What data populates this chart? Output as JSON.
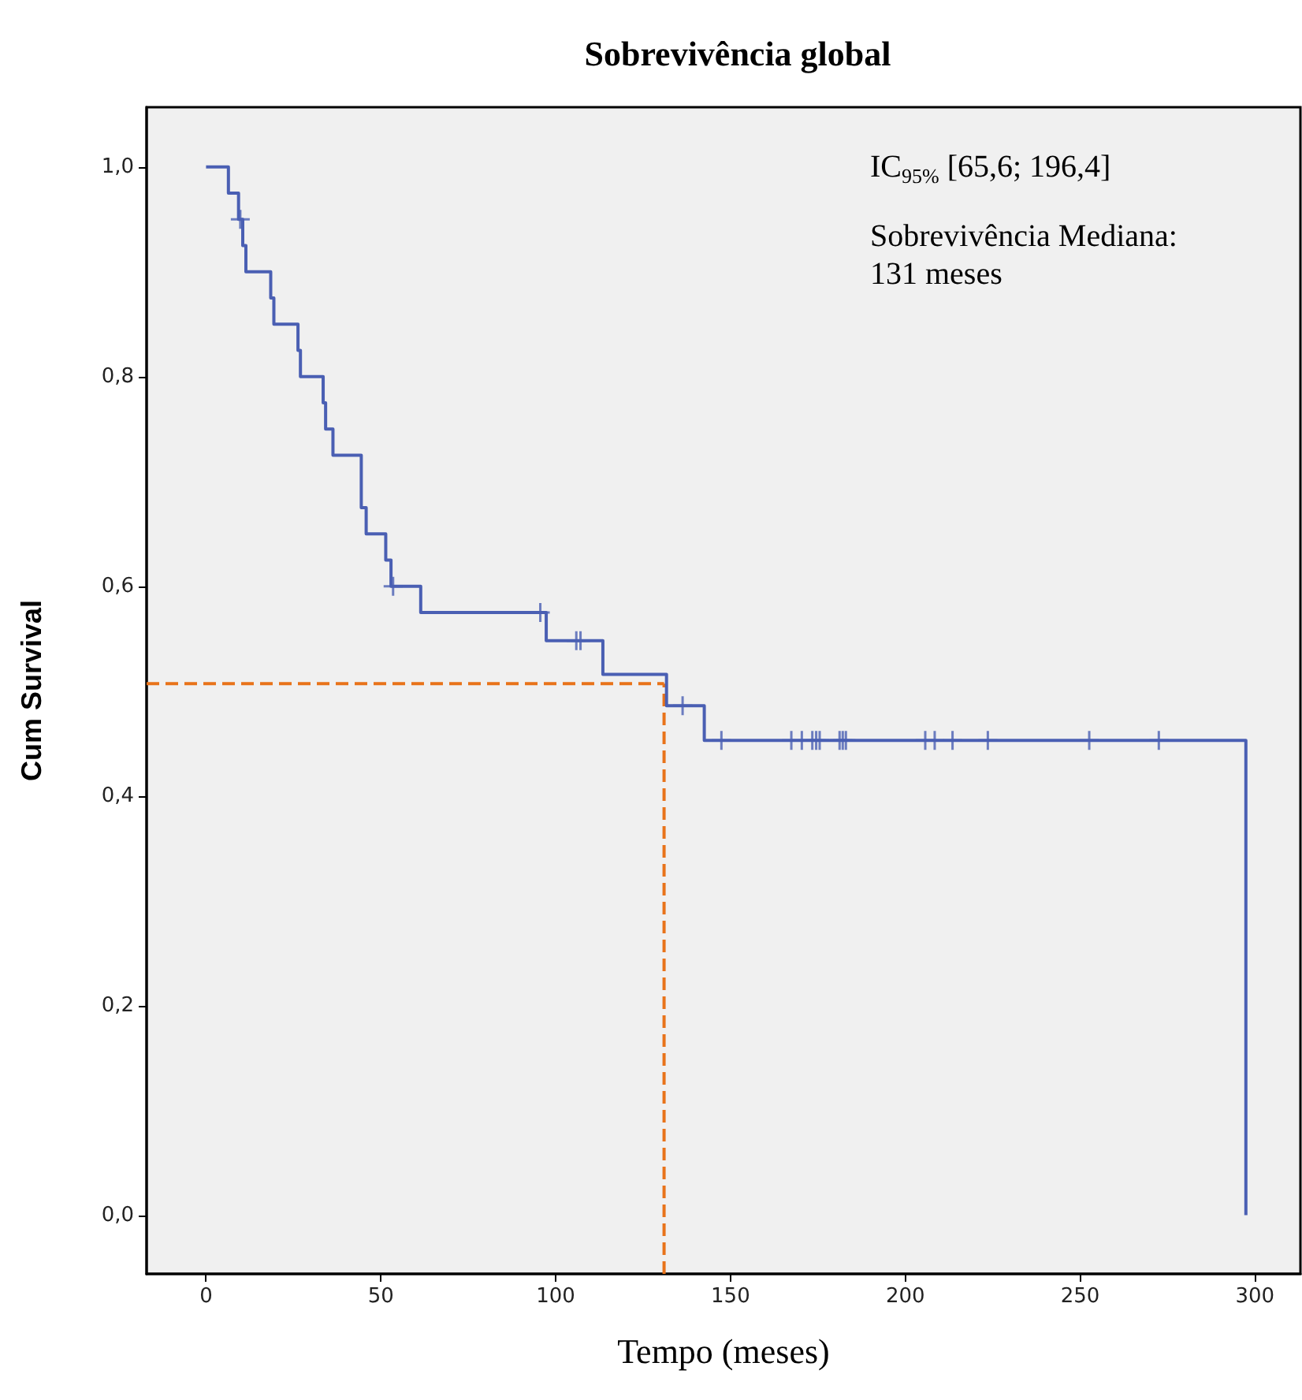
{
  "chart_data": {
    "type": "step",
    "title": "Sobrevivência global",
    "xlabel": "Tempo (meses)",
    "ylabel": "Cum Survival",
    "annotations": [
      "IC$_{95%}$ [65,6; 196,4]",
      "Sobrevivência Mediana:\n131 meses"
    ],
    "series": [
      {
        "color": "#4a5fb3",
        "marker": "none",
        "x": [
          0,
          6.4,
          9.3,
          10.5,
          11.4,
          18.5,
          19.4,
          26.3,
          27,
          33.5,
          34.2,
          36.3,
          44.4,
          45.8,
          51.4,
          52.9,
          61.4,
          97.3,
          113.5,
          131.7,
          142.5,
          297.4
        ],
        "values": [
          1,
          0.975,
          0.95,
          0.925,
          0.9,
          0.875,
          0.85,
          0.825,
          0.8,
          0.775,
          0.75,
          0.725,
          0.675,
          0.65,
          0.625,
          0.6,
          0.575,
          0.548,
          0.516,
          0.486,
          0.453,
          0
        ]
      },
      {
        "type": "scatter",
        "color": "#4a5fb3",
        "marker": "cross",
        "x": [
          9.8,
          53.5,
          95.6,
          105.9,
          107.1,
          136.3,
          147.4,
          167.4,
          170.4,
          173.4,
          174.5,
          175.5,
          181.2,
          182.1,
          183.0,
          205.7,
          208.4,
          213.5,
          223.6,
          252.6,
          272.5
        ],
        "values": [
          0.95,
          0.6,
          0.575,
          0.548,
          0.548,
          0.486,
          0.453,
          0.453,
          0.453,
          0.453,
          0.453,
          0.453,
          0.453,
          0.453,
          0.453,
          0.453,
          0.453,
          0.453,
          0.453,
          0.453,
          0.453
        ]
      }
    ],
    "ref_lines": [
      {
        "axis": "y",
        "value": 0.507,
        "color": "#e8731a",
        "line_style": "dashed"
      },
      {
        "axis": "x",
        "value": 131,
        "color": "#e8731a",
        "line_style": "dashed"
      }
    ],
    "xlim": [
      -17,
      313
    ],
    "xticks": [
      0,
      50,
      100,
      150,
      200,
      250,
      300
    ],
    "ylim": [
      -0.056,
      1.057
    ],
    "yticks": [
      {
        "value": 0,
        "label": "0,0"
      },
      {
        "value": 0.2,
        "label": "0,2"
      },
      {
        "value": 0.4,
        "label": "0,4"
      },
      {
        "value": 0.6,
        "label": "0,6"
      },
      {
        "value": 0.8,
        "label": "0,8"
      },
      {
        "value": 1,
        "label": "1,0"
      }
    ],
    "grid": false
  }
}
